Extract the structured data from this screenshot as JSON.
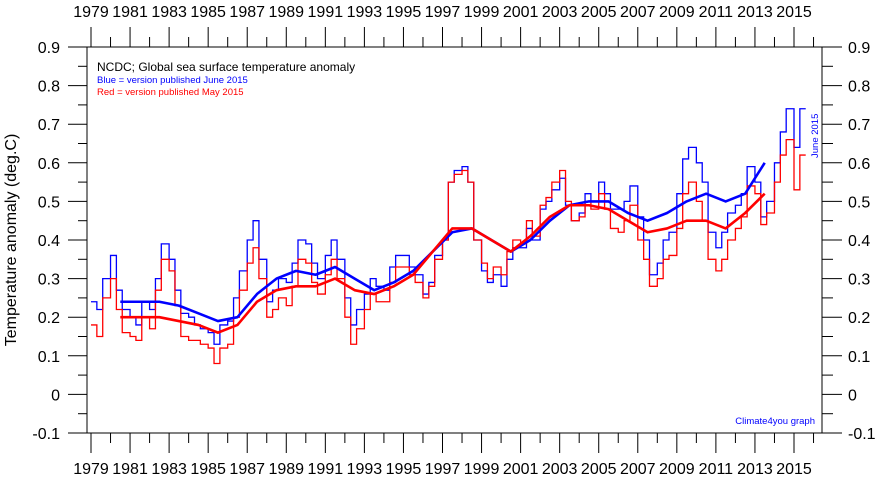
{
  "chart_data": {
    "type": "line",
    "title": "NCDC; Global sea surface temperature anomaly",
    "legend": [
      {
        "text": "Blue = version published June 2015",
        "color": "#0000ff"
      },
      {
        "text": "Red = version published May 2015",
        "color": "#ff0000"
      }
    ],
    "legend_placement": "top-left",
    "ylabel": "Temperature anomaly (deg.C)",
    "xlabel": "",
    "ylim": [
      -0.1,
      0.9
    ],
    "xlim": [
      1978.8,
      2016.5
    ],
    "y_ticks": [
      "0.9",
      "0.8",
      "0.7",
      "0.6",
      "0.5",
      "0.4",
      "0.3",
      "0.2",
      "0.1",
      "0",
      "-0.1"
    ],
    "y_tick_values": [
      0.9,
      0.8,
      0.7,
      0.6,
      0.5,
      0.4,
      0.3,
      0.2,
      0.1,
      0,
      -0.1
    ],
    "x_ticks": [
      "1979",
      "1981",
      "1983",
      "1985",
      "1987",
      "1989",
      "1991",
      "1993",
      "1995",
      "1997",
      "1999",
      "2001",
      "2003",
      "2005",
      "2007",
      "2009",
      "2011",
      "2013",
      "2015"
    ],
    "annotation_right": "June 2015",
    "credit": "Climate4you graph",
    "grid": false,
    "series": [
      {
        "name": "June 2015 monthly",
        "color": "#0000ff",
        "kind": "monthly",
        "x": [
          1979.0,
          1979.3,
          1979.6,
          1980.0,
          1980.3,
          1980.6,
          1981.0,
          1981.3,
          1981.6,
          1982.0,
          1982.3,
          1982.6,
          1983.0,
          1983.3,
          1983.6,
          1984.0,
          1984.3,
          1984.6,
          1985.0,
          1985.3,
          1985.6,
          1986.0,
          1986.3,
          1986.6,
          1987.0,
          1987.3,
          1987.6,
          1988.0,
          1988.3,
          1988.6,
          1989.0,
          1989.3,
          1989.6,
          1990.0,
          1990.3,
          1990.6,
          1991.0,
          1991.3,
          1991.6,
          1992.0,
          1992.3,
          1992.6,
          1993.0,
          1993.3,
          1993.6,
          1994.0,
          1994.3,
          1994.6,
          1995.0,
          1995.3,
          1995.6,
          1996.0,
          1996.3,
          1996.6,
          1997.0,
          1997.3,
          1997.6,
          1998.0,
          1998.3,
          1998.6,
          1999.0,
          1999.3,
          1999.6,
          2000.0,
          2000.3,
          2000.6,
          2001.0,
          2001.3,
          2001.6,
          2002.0,
          2002.3,
          2002.6,
          2003.0,
          2003.3,
          2003.6,
          2004.0,
          2004.3,
          2004.6,
          2005.0,
          2005.3,
          2005.6,
          2006.0,
          2006.3,
          2006.6,
          2007.0,
          2007.3,
          2007.6,
          2008.0,
          2008.3,
          2008.6,
          2009.0,
          2009.3,
          2009.6,
          2010.0,
          2010.3,
          2010.6,
          2011.0,
          2011.3,
          2011.6,
          2012.0,
          2012.3,
          2012.6,
          2013.0,
          2013.3,
          2013.6,
          2014.0,
          2014.3,
          2014.6,
          2015.0,
          2015.3
        ],
        "y": [
          0.24,
          0.22,
          0.3,
          0.36,
          0.27,
          0.22,
          0.2,
          0.18,
          0.24,
          0.22,
          0.3,
          0.39,
          0.35,
          0.27,
          0.21,
          0.2,
          0.18,
          0.17,
          0.16,
          0.13,
          0.18,
          0.19,
          0.25,
          0.32,
          0.4,
          0.45,
          0.35,
          0.24,
          0.27,
          0.3,
          0.29,
          0.34,
          0.4,
          0.39,
          0.34,
          0.3,
          0.36,
          0.4,
          0.35,
          0.25,
          0.18,
          0.22,
          0.26,
          0.3,
          0.28,
          0.27,
          0.33,
          0.36,
          0.36,
          0.33,
          0.31,
          0.26,
          0.29,
          0.36,
          0.4,
          0.55,
          0.58,
          0.59,
          0.55,
          0.4,
          0.32,
          0.29,
          0.31,
          0.28,
          0.35,
          0.38,
          0.38,
          0.43,
          0.4,
          0.48,
          0.5,
          0.53,
          0.56,
          0.49,
          0.45,
          0.47,
          0.52,
          0.5,
          0.55,
          0.52,
          0.48,
          0.48,
          0.5,
          0.54,
          0.46,
          0.4,
          0.31,
          0.34,
          0.4,
          0.42,
          0.52,
          0.61,
          0.64,
          0.6,
          0.55,
          0.42,
          0.38,
          0.42,
          0.47,
          0.49,
          0.52,
          0.59,
          0.55,
          0.46,
          0.5,
          0.6,
          0.68,
          0.74,
          0.64,
          0.74
        ]
      },
      {
        "name": "May 2015 monthly",
        "color": "#ff0000",
        "kind": "monthly",
        "x": [
          1979.0,
          1979.3,
          1979.6,
          1980.0,
          1980.3,
          1980.6,
          1981.0,
          1981.3,
          1981.6,
          1982.0,
          1982.3,
          1982.6,
          1983.0,
          1983.3,
          1983.6,
          1984.0,
          1984.3,
          1984.6,
          1985.0,
          1985.3,
          1985.6,
          1986.0,
          1986.3,
          1986.6,
          1987.0,
          1987.3,
          1987.6,
          1988.0,
          1988.3,
          1988.6,
          1989.0,
          1989.3,
          1989.6,
          1990.0,
          1990.3,
          1990.6,
          1991.0,
          1991.3,
          1991.6,
          1992.0,
          1992.3,
          1992.6,
          1993.0,
          1993.3,
          1993.6,
          1994.0,
          1994.3,
          1994.6,
          1995.0,
          1995.3,
          1995.6,
          1996.0,
          1996.3,
          1996.6,
          1997.0,
          1997.3,
          1997.6,
          1998.0,
          1998.3,
          1998.6,
          1999.0,
          1999.3,
          1999.6,
          2000.0,
          2000.3,
          2000.6,
          2001.0,
          2001.3,
          2001.6,
          2002.0,
          2002.3,
          2002.6,
          2003.0,
          2003.3,
          2003.6,
          2004.0,
          2004.3,
          2004.6,
          2005.0,
          2005.3,
          2005.6,
          2006.0,
          2006.3,
          2006.6,
          2007.0,
          2007.3,
          2007.6,
          2008.0,
          2008.3,
          2008.6,
          2009.0,
          2009.3,
          2009.6,
          2010.0,
          2010.3,
          2010.6,
          2011.0,
          2011.3,
          2011.6,
          2012.0,
          2012.3,
          2012.6,
          2013.0,
          2013.3,
          2013.6,
          2014.0,
          2014.3,
          2014.6,
          2015.0,
          2015.3
        ],
        "y": [
          0.18,
          0.15,
          0.25,
          0.3,
          0.22,
          0.16,
          0.15,
          0.14,
          0.2,
          0.17,
          0.27,
          0.35,
          0.32,
          0.23,
          0.15,
          0.14,
          0.14,
          0.13,
          0.12,
          0.08,
          0.12,
          0.13,
          0.2,
          0.27,
          0.34,
          0.38,
          0.3,
          0.2,
          0.22,
          0.25,
          0.23,
          0.28,
          0.35,
          0.34,
          0.29,
          0.26,
          0.31,
          0.35,
          0.3,
          0.2,
          0.13,
          0.17,
          0.22,
          0.26,
          0.24,
          0.24,
          0.29,
          0.33,
          0.33,
          0.31,
          0.29,
          0.25,
          0.28,
          0.35,
          0.4,
          0.55,
          0.57,
          0.58,
          0.55,
          0.4,
          0.34,
          0.3,
          0.33,
          0.31,
          0.37,
          0.4,
          0.39,
          0.45,
          0.41,
          0.49,
          0.51,
          0.55,
          0.58,
          0.5,
          0.45,
          0.46,
          0.5,
          0.48,
          0.52,
          0.48,
          0.43,
          0.42,
          0.45,
          0.49,
          0.4,
          0.35,
          0.28,
          0.3,
          0.35,
          0.36,
          0.43,
          0.52,
          0.55,
          0.5,
          0.45,
          0.35,
          0.32,
          0.35,
          0.4,
          0.43,
          0.46,
          0.54,
          0.52,
          0.44,
          0.47,
          0.55,
          0.62,
          0.66,
          0.53,
          0.62
        ]
      },
      {
        "name": "June 2015 running 37-month average",
        "color": "#0000ff",
        "kind": "smooth",
        "x": [
          1980.5,
          1981.5,
          1982.5,
          1983.5,
          1984.5,
          1985.5,
          1986.5,
          1987.5,
          1988.5,
          1989.5,
          1990.5,
          1991.5,
          1992.5,
          1993.5,
          1994.5,
          1995.5,
          1996.5,
          1997.5,
          1998.5,
          1999.5,
          2000.5,
          2001.5,
          2002.5,
          2003.5,
          2004.5,
          2005.5,
          2006.5,
          2007.5,
          2008.5,
          2009.5,
          2010.5,
          2011.5,
          2012.5,
          2013.5
        ],
        "y": [
          0.24,
          0.24,
          0.24,
          0.23,
          0.21,
          0.19,
          0.2,
          0.26,
          0.3,
          0.32,
          0.31,
          0.33,
          0.3,
          0.27,
          0.29,
          0.32,
          0.37,
          0.42,
          0.43,
          0.4,
          0.37,
          0.4,
          0.45,
          0.49,
          0.5,
          0.5,
          0.47,
          0.45,
          0.47,
          0.5,
          0.52,
          0.5,
          0.52,
          0.6
        ]
      },
      {
        "name": "May 2015 running 37-month average",
        "color": "#ff0000",
        "kind": "smooth",
        "x": [
          1980.5,
          1981.5,
          1982.5,
          1983.5,
          1984.5,
          1985.5,
          1986.5,
          1987.5,
          1988.5,
          1989.5,
          1990.5,
          1991.5,
          1992.5,
          1993.5,
          1994.5,
          1995.5,
          1996.5,
          1997.5,
          1998.5,
          1999.5,
          2000.5,
          2001.5,
          2002.5,
          2003.5,
          2004.5,
          2005.5,
          2006.5,
          2007.5,
          2008.5,
          2009.5,
          2010.5,
          2011.5,
          2012.5,
          2013.5
        ],
        "y": [
          0.2,
          0.2,
          0.2,
          0.19,
          0.18,
          0.16,
          0.18,
          0.24,
          0.27,
          0.28,
          0.28,
          0.3,
          0.27,
          0.26,
          0.28,
          0.31,
          0.37,
          0.43,
          0.43,
          0.4,
          0.37,
          0.41,
          0.46,
          0.49,
          0.49,
          0.48,
          0.45,
          0.42,
          0.43,
          0.45,
          0.45,
          0.43,
          0.47,
          0.52
        ]
      }
    ]
  }
}
